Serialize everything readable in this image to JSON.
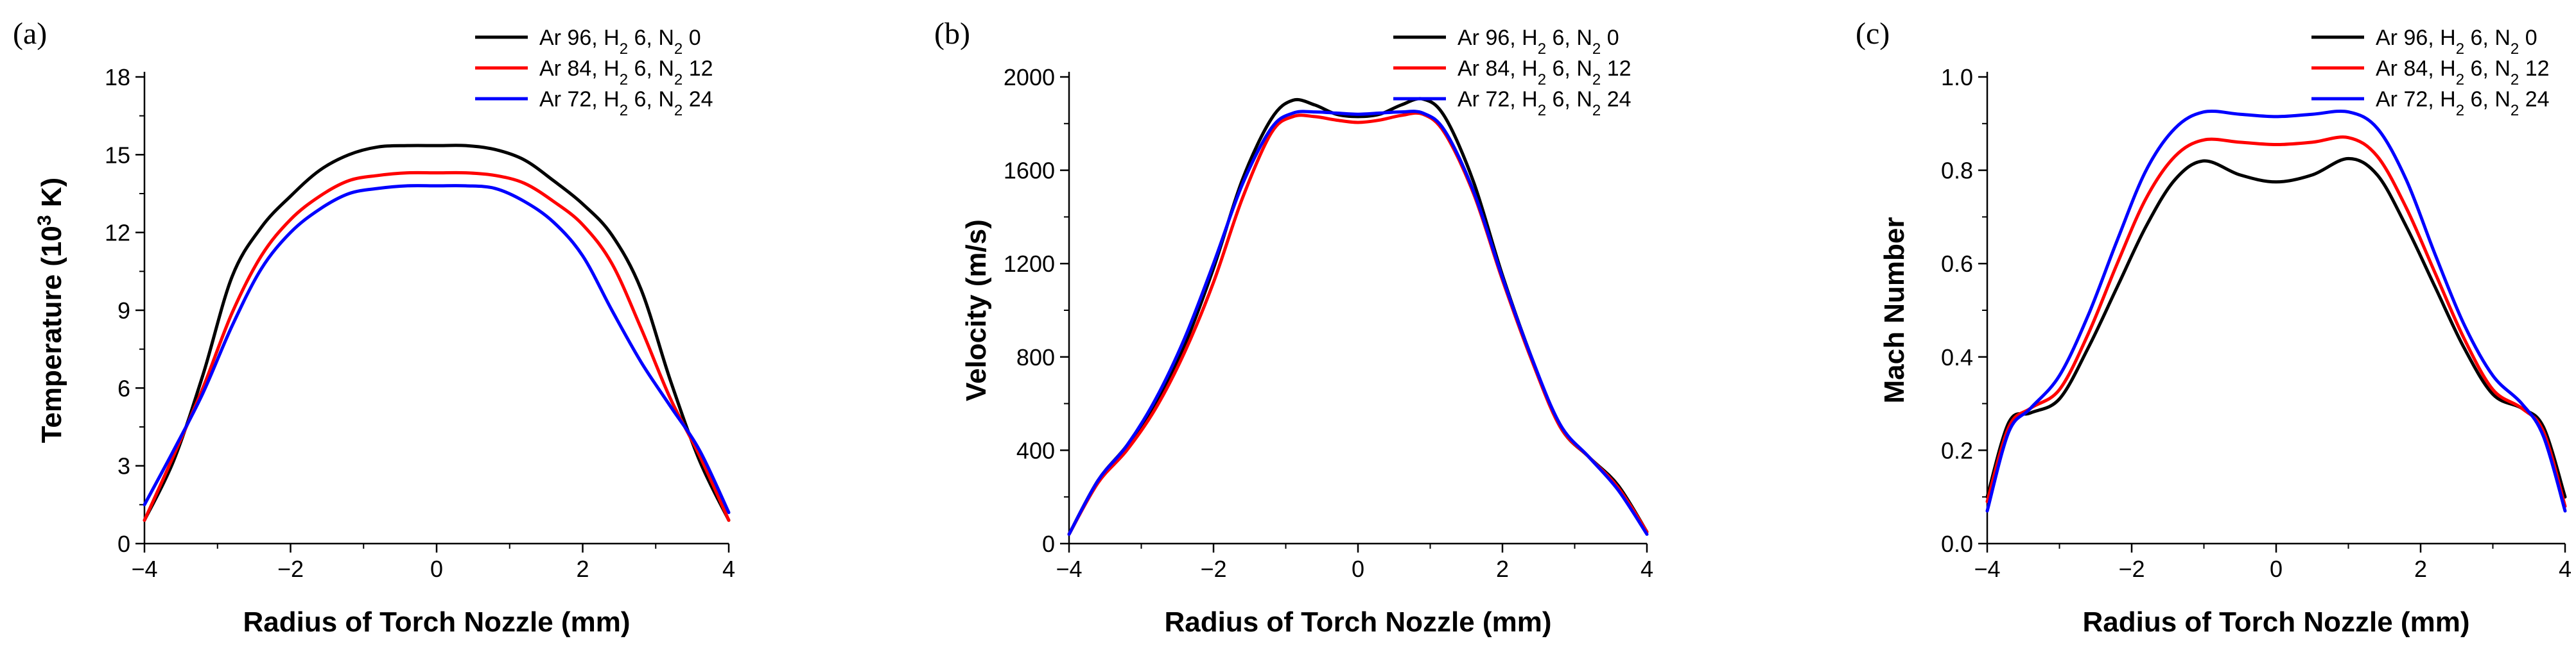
{
  "chart_data": [
    {
      "type": "line",
      "panel_label": "(a)",
      "xlabel": "Radius of Torch Nozzle (mm)",
      "ylabel": "Temperature (10³ K)",
      "ylabel_parts": {
        "main": "Temperature (10",
        "sup": "3",
        "tail": " K)"
      },
      "xlim": [
        -4,
        4
      ],
      "ylim": [
        0,
        18
      ],
      "xticks": [
        -4,
        -2,
        0,
        2,
        4
      ],
      "xtick_labels": [
        "−4",
        "−2",
        "0",
        "2",
        "4"
      ],
      "yticks": [
        0,
        3,
        6,
        9,
        12,
        15,
        18
      ],
      "ytick_labels": [
        "0",
        "3",
        "6",
        "9",
        "12",
        "15",
        "18"
      ],
      "legend_position": "top-right",
      "series": [
        {
          "name": "Ar 96, H2 6, N2 0",
          "label_parts": {
            "a": "Ar 96, H",
            "s1": "2",
            "b": " 6, N",
            "s2": "2",
            "c": " 0"
          },
          "color": "#000000",
          "x": [
            -4,
            -3.6,
            -3.2,
            -2.8,
            -2.4,
            -2,
            -1.6,
            -1.2,
            -0.8,
            -0.4,
            0,
            0.4,
            0.8,
            1.2,
            1.6,
            2,
            2.4,
            2.8,
            3.2,
            3.6,
            4
          ],
          "y": [
            0.9,
            3.2,
            6.5,
            10.3,
            12.2,
            13.4,
            14.4,
            15.0,
            15.3,
            15.35,
            15.35,
            15.35,
            15.2,
            14.8,
            14.0,
            13.1,
            11.9,
            9.8,
            6.3,
            3.2,
            0.9
          ]
        },
        {
          "name": "Ar 84, H2 6, N2 12",
          "label_parts": {
            "a": "Ar 84, H",
            "s1": "2",
            "b": " 6, N",
            "s2": "2",
            "c": " 12"
          },
          "color": "#ff0000",
          "x": [
            -4,
            -3.6,
            -3.2,
            -2.8,
            -2.4,
            -2,
            -1.6,
            -1.2,
            -0.8,
            -0.4,
            0,
            0.4,
            0.8,
            1.2,
            1.6,
            2,
            2.4,
            2.8,
            3.2,
            3.6,
            4
          ],
          "y": [
            0.9,
            3.4,
            6.0,
            8.9,
            11.1,
            12.5,
            13.4,
            14.0,
            14.2,
            14.3,
            14.3,
            14.3,
            14.2,
            13.9,
            13.2,
            12.3,
            10.8,
            8.3,
            5.6,
            3.4,
            0.9
          ]
        },
        {
          "name": "Ar 72, H2 6, N2 24",
          "label_parts": {
            "a": "Ar 72, H",
            "s1": "2",
            "b": " 6, N",
            "s2": "2",
            "c": " 24"
          },
          "color": "#0000ff",
          "x": [
            -4,
            -3.6,
            -3.2,
            -2.8,
            -2.4,
            -2,
            -1.6,
            -1.2,
            -0.8,
            -0.4,
            0,
            0.4,
            0.8,
            1.2,
            1.6,
            2,
            2.4,
            2.8,
            3.2,
            3.6,
            4
          ],
          "y": [
            1.5,
            3.6,
            5.8,
            8.4,
            10.6,
            12.0,
            12.9,
            13.5,
            13.7,
            13.8,
            13.8,
            13.8,
            13.7,
            13.2,
            12.4,
            11.1,
            9.0,
            7.0,
            5.3,
            3.6,
            1.2
          ]
        }
      ]
    },
    {
      "type": "line",
      "panel_label": "(b)",
      "xlabel": "Radius of Torch Nozzle (mm)",
      "ylabel": "Velocity (m/s)",
      "ylabel_parts": {
        "main": "Velocity (m/s)",
        "sup": "",
        "tail": ""
      },
      "xlim": [
        -4,
        4
      ],
      "ylim": [
        0,
        2000
      ],
      "xticks": [
        -4,
        -2,
        0,
        2,
        4
      ],
      "xtick_labels": [
        "−4",
        "−2",
        "0",
        "2",
        "4"
      ],
      "yticks": [
        0,
        400,
        800,
        1200,
        1600,
        2000
      ],
      "ytick_labels": [
        "0",
        "400",
        "800",
        "1200",
        "1600",
        "2000"
      ],
      "legend_position": "top-right",
      "series": [
        {
          "name": "Ar 96, H2 6, N2 0",
          "label_parts": {
            "a": "Ar 96, H",
            "s1": "2",
            "b": " 6, N",
            "s2": "2",
            "c": " 0"
          },
          "color": "#000000",
          "x": [
            -4,
            -3.6,
            -3.2,
            -2.8,
            -2.4,
            -2,
            -1.6,
            -1.2,
            -0.9,
            -0.6,
            -0.3,
            0,
            0.3,
            0.6,
            0.9,
            1.2,
            1.6,
            2,
            2.4,
            2.8,
            3.2,
            3.6,
            4
          ],
          "y": [
            40,
            270,
            420,
            600,
            850,
            1180,
            1560,
            1820,
            1900,
            1880,
            1840,
            1830,
            1840,
            1880,
            1905,
            1830,
            1550,
            1150,
            800,
            500,
            370,
            250,
            50
          ]
        },
        {
          "name": "Ar 84, H2 6, N2 12",
          "label_parts": {
            "a": "Ar 84, H",
            "s1": "2",
            "b": " 6, N",
            "s2": "2",
            "c": " 12"
          },
          "color": "#ff0000",
          "x": [
            -4,
            -3.6,
            -3.2,
            -2.8,
            -2.4,
            -2,
            -1.6,
            -1.2,
            -0.9,
            -0.6,
            -0.3,
            0,
            0.3,
            0.6,
            0.9,
            1.2,
            1.6,
            2,
            2.4,
            2.8,
            3.2,
            3.6,
            4
          ],
          "y": [
            40,
            260,
            400,
            580,
            820,
            1120,
            1480,
            1760,
            1830,
            1830,
            1815,
            1805,
            1815,
            1835,
            1840,
            1760,
            1500,
            1130,
            790,
            500,
            370,
            240,
            50
          ]
        },
        {
          "name": "Ar 72, H2 6, N2 24",
          "label_parts": {
            "a": "Ar 72, H",
            "s1": "2",
            "b": " 6, N",
            "s2": "2",
            "c": " 24"
          },
          "color": "#0000ff",
          "x": [
            -4,
            -3.6,
            -3.2,
            -2.8,
            -2.4,
            -2,
            -1.6,
            -1.2,
            -0.9,
            -0.6,
            -0.3,
            0,
            0.3,
            0.6,
            0.9,
            1.2,
            1.6,
            2,
            2.4,
            2.8,
            3.2,
            3.6,
            4
          ],
          "y": [
            40,
            270,
            420,
            620,
            880,
            1200,
            1540,
            1780,
            1845,
            1850,
            1845,
            1840,
            1845,
            1850,
            1845,
            1770,
            1510,
            1140,
            800,
            510,
            370,
            230,
            40
          ]
        }
      ]
    },
    {
      "type": "line",
      "panel_label": "(c)",
      "xlabel": "Radius of Torch Nozzle (mm)",
      "ylabel": "Mach Number",
      "ylabel_parts": {
        "main": "Mach Number",
        "sup": "",
        "tail": ""
      },
      "xlim": [
        -4,
        4
      ],
      "ylim": [
        0,
        1.0
      ],
      "xticks": [
        -4,
        -2,
        0,
        2,
        4
      ],
      "xtick_labels": [
        "−4",
        "−2",
        "0",
        "2",
        "4"
      ],
      "yticks": [
        0,
        0.2,
        0.4,
        0.6,
        0.8,
        1.0
      ],
      "ytick_labels": [
        "0.0",
        "0.2",
        "0.4",
        "0.6",
        "0.8",
        "1.0"
      ],
      "legend_position": "top-right",
      "series": [
        {
          "name": "Ar 96, H2 6, N2 0",
          "label_parts": {
            "a": "Ar 96, H",
            "s1": "2",
            "b": " 6, N",
            "s2": "2",
            "c": " 0"
          },
          "color": "#000000",
          "x": [
            -4,
            -3.7,
            -3.4,
            -3,
            -2.6,
            -2.2,
            -1.8,
            -1.4,
            -1,
            -0.5,
            0,
            0.5,
            1,
            1.4,
            1.8,
            2.2,
            2.6,
            3,
            3.4,
            3.7,
            4
          ],
          "y": [
            0.1,
            0.26,
            0.28,
            0.31,
            0.42,
            0.55,
            0.68,
            0.78,
            0.82,
            0.79,
            0.775,
            0.79,
            0.825,
            0.79,
            0.68,
            0.55,
            0.42,
            0.32,
            0.29,
            0.25,
            0.1
          ]
        },
        {
          "name": "Ar 84, H2 6, N2 12",
          "label_parts": {
            "a": "Ar 84, H",
            "s1": "2",
            "b": " 6, N",
            "s2": "2",
            "c": " 12"
          },
          "color": "#ff0000",
          "x": [
            -4,
            -3.7,
            -3.4,
            -3,
            -2.6,
            -2.2,
            -1.8,
            -1.4,
            -1,
            -0.5,
            0,
            0.5,
            1,
            1.4,
            1.8,
            2.2,
            2.6,
            3,
            3.4,
            3.7,
            4
          ],
          "y": [
            0.09,
            0.25,
            0.29,
            0.33,
            0.45,
            0.6,
            0.74,
            0.83,
            0.865,
            0.86,
            0.855,
            0.86,
            0.87,
            0.83,
            0.72,
            0.58,
            0.44,
            0.33,
            0.29,
            0.24,
            0.08
          ]
        },
        {
          "name": "Ar 72, H2 6, N2 24",
          "label_parts": {
            "a": "Ar 72, H",
            "s1": "2",
            "b": " 6, N",
            "s2": "2",
            "c": " 24"
          },
          "color": "#0000ff",
          "x": [
            -4,
            -3.7,
            -3.4,
            -3,
            -2.6,
            -2.2,
            -1.8,
            -1.4,
            -1,
            -0.5,
            0,
            0.5,
            1,
            1.4,
            1.8,
            2.2,
            2.6,
            3,
            3.4,
            3.7,
            4
          ],
          "y": [
            0.07,
            0.24,
            0.29,
            0.36,
            0.49,
            0.65,
            0.8,
            0.89,
            0.925,
            0.92,
            0.915,
            0.92,
            0.925,
            0.89,
            0.78,
            0.62,
            0.47,
            0.36,
            0.3,
            0.23,
            0.07
          ]
        }
      ]
    }
  ]
}
